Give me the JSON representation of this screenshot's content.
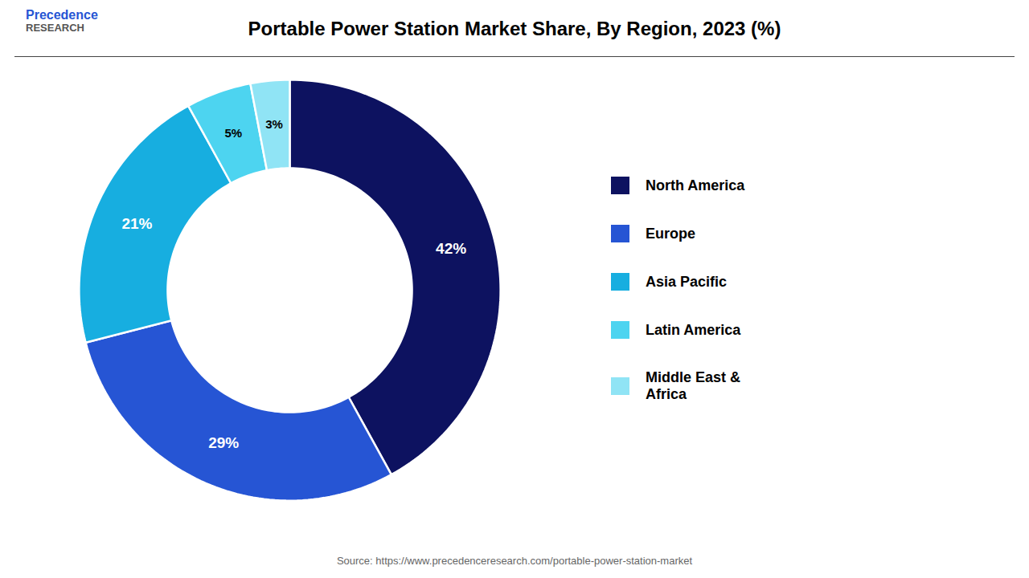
{
  "chart_data": {
    "type": "donut",
    "title": "Portable Power Station Market Share, By Region, 2023 (%)",
    "categories": [
      "North America",
      "Europe",
      "Asia Pacific",
      "Latin America",
      "Middle East &\nAfrica"
    ],
    "values": [
      42,
      29,
      21,
      5,
      3
    ],
    "value_labels": [
      "42%",
      "29%",
      "21%",
      "5%",
      "3%"
    ],
    "colors": [
      "#0d1260",
      "#2655d4",
      "#17aee0",
      "#4dd4f0",
      "#90e4f5"
    ],
    "data_labels": true,
    "legend": "right",
    "annotations": [
      "Precedence",
      "RESEARCH",
      "Source: https://www.precedenceresearch.com/portable-power-station-market"
    ]
  }
}
